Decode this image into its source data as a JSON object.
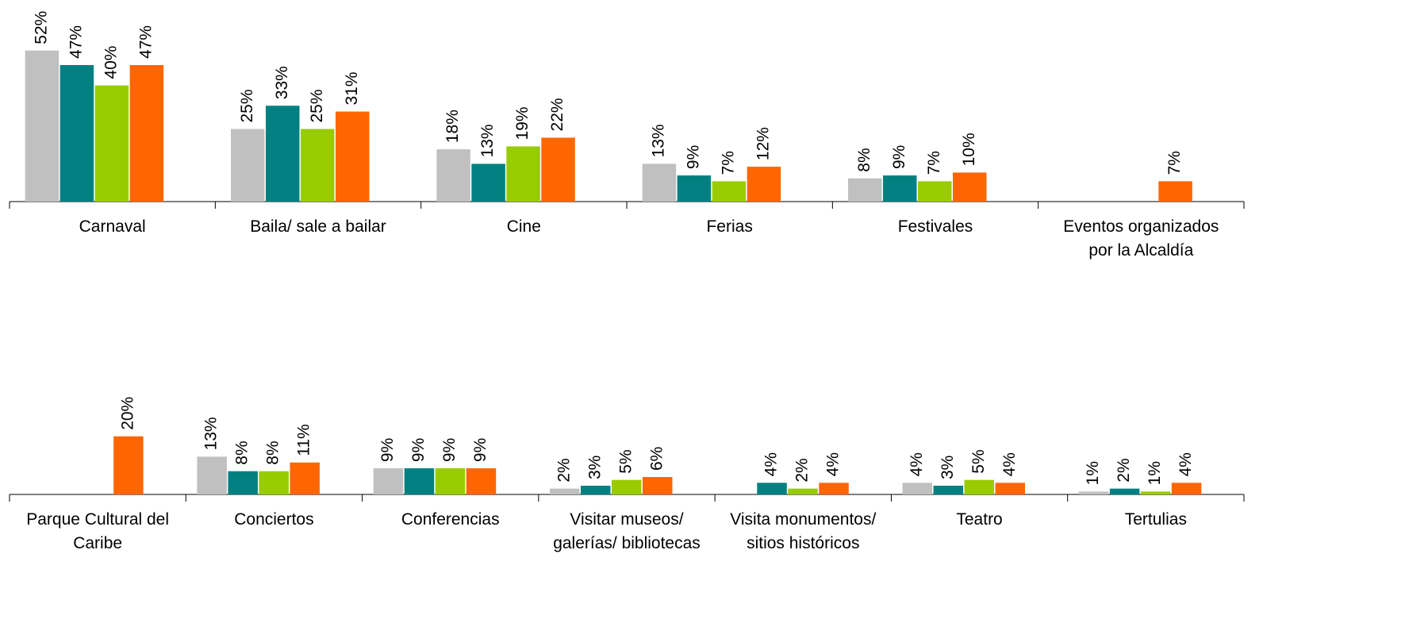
{
  "chart_data": [
    {
      "type": "bar",
      "categories": [
        "Carnaval",
        "Baila/ sale a bailar",
        "Cine",
        "Ferias",
        "Festivales",
        "Eventos organizados\npor la Alcaldía"
      ],
      "series": [
        {
          "color": "#c0c0c0",
          "values": [
            52,
            25,
            18,
            13,
            8,
            null
          ],
          "value_labels": [
            "52%",
            "25%",
            "18%",
            "13%",
            "8%",
            null
          ]
        },
        {
          "color": "#008080",
          "values": [
            47,
            33,
            13,
            9,
            9,
            null
          ],
          "value_labels": [
            "47%",
            "33%",
            "13%",
            "9%",
            "9%",
            null
          ]
        },
        {
          "color": "#99cc00",
          "values": [
            40,
            25,
            19,
            7,
            7,
            null
          ],
          "value_labels": [
            "40%",
            "25%",
            "19%",
            "7%",
            "7%",
            null
          ]
        },
        {
          "color": "#ff6600",
          "values": [
            47,
            31,
            22,
            12,
            10,
            7
          ],
          "value_labels": [
            "47%",
            "31%",
            "22%",
            "12%",
            "10%",
            "7%"
          ]
        }
      ]
    },
    {
      "type": "bar",
      "categories": [
        "Parque Cultural del\nCaribe",
        "Conciertos",
        "Conferencias",
        "Visitar museos/\ngalerías/ bibliotecas",
        "Visita monumentos/\nsitios históricos",
        "Teatro",
        "Tertulias"
      ],
      "series": [
        {
          "color": "#c0c0c0",
          "values": [
            null,
            13,
            9,
            2,
            null,
            4,
            1
          ],
          "value_labels": [
            null,
            "13%",
            "9%",
            "2%",
            null,
            "4%",
            "1%"
          ]
        },
        {
          "color": "#008080",
          "values": [
            null,
            8,
            9,
            3,
            4,
            3,
            2
          ],
          "value_labels": [
            null,
            "8%",
            "9%",
            "3%",
            "4%",
            "3%",
            "2%"
          ]
        },
        {
          "color": "#99cc00",
          "values": [
            null,
            8,
            9,
            5,
            2,
            5,
            1
          ],
          "value_labels": [
            null,
            "8%",
            "9%",
            "5%",
            "2%",
            "5%",
            "1%"
          ]
        },
        {
          "color": "#ff6600",
          "values": [
            20,
            11,
            9,
            6,
            4,
            4,
            4
          ],
          "value_labels": [
            "20%",
            "11%",
            "9%",
            "6%",
            "4%",
            "4%",
            "4%"
          ]
        }
      ]
    }
  ]
}
